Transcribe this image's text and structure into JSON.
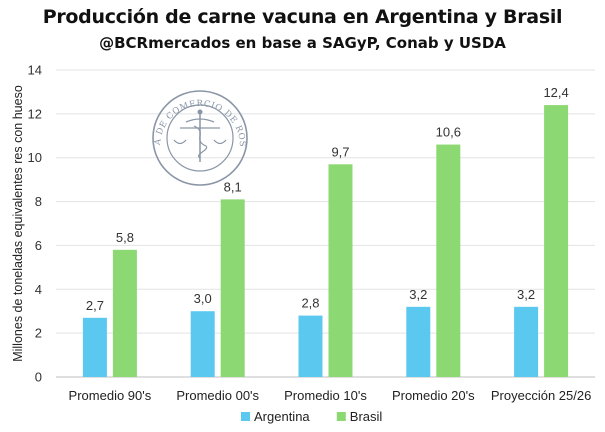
{
  "chart_data": {
    "type": "bar",
    "title": "Producción de carne vacuna en Argentina y Brasil",
    "subtitle": "@BCRmercados en base a SAGyP, Conab y USDA",
    "ylabel": "Millones de toneladas equivalentes res con hueso",
    "xlabel": "",
    "ylim": [
      0,
      14
    ],
    "yticks": [
      "0",
      "2",
      "4",
      "6",
      "8",
      "10",
      "12",
      "14"
    ],
    "grid": true,
    "legend_position": "bottom",
    "categories": [
      "Promedio 90's",
      "Promedio 00's",
      "Promedio 10's",
      "Promedio 20's",
      "Proyección 25/26"
    ],
    "series": [
      {
        "name": "Argentina",
        "values": [
          2.7,
          3.0,
          2.8,
          3.2,
          3.2
        ],
        "labels": [
          "2,7",
          "3,0",
          "2,8",
          "3,2",
          "3,2"
        ],
        "color": "#5bc8f0"
      },
      {
        "name": "Brasil",
        "values": [
          5.8,
          8.1,
          9.7,
          10.6,
          12.4
        ],
        "labels": [
          "5,8",
          "8,1",
          "9,7",
          "10,6",
          "12,4"
        ],
        "color": "#8cd872"
      }
    ]
  },
  "watermark": {
    "ring_text": "BOLSA DE COMERCIO DE ROSARIO",
    "color": "#8a96a6"
  }
}
